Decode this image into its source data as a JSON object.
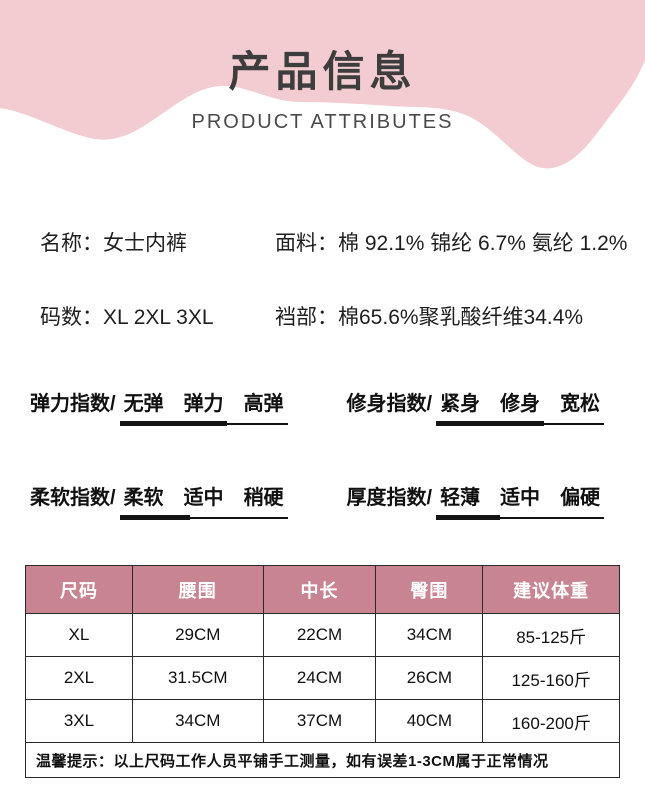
{
  "banner": {
    "title": "产品信息",
    "subtitle": "PRODUCT ATTRIBUTES",
    "bg_color": "#f2ccd1"
  },
  "info": {
    "name": "名称：女士内裤",
    "fabric": "面料：棉 92.1% 锦纶 6.7% 氨纶 1.2%",
    "sizes": "码数：XL 2XL 3XL",
    "crotch": "裆部：棉65.6%聚乳酸纤维34.4%"
  },
  "indicators": [
    {
      "label": "弹力指数/",
      "options": [
        "无弹",
        "弹力",
        "高弹"
      ],
      "fill_percent": 64
    },
    {
      "label": "修身指数/",
      "options": [
        "紧身",
        "修身",
        "宽松"
      ],
      "fill_percent": 64
    },
    {
      "label": "柔软指数/",
      "options": [
        "柔软",
        "适中",
        "稍硬"
      ],
      "fill_percent": 42
    },
    {
      "label": "厚度指数/",
      "options": [
        "轻薄",
        "适中",
        "偏硬"
      ],
      "fill_percent": 38
    }
  ],
  "table": {
    "header_bg": "#c98492",
    "headers": [
      "尺码",
      "腰围",
      "中长",
      "臀围",
      "建议体重"
    ],
    "rows": [
      [
        "XL",
        "29CM",
        "22CM",
        "34CM",
        "85-125斤"
      ],
      [
        "2XL",
        "31.5CM",
        "24CM",
        "26CM",
        "125-160斤"
      ],
      [
        "3XL",
        "34CM",
        "37CM",
        "40CM",
        "160-200斤"
      ]
    ],
    "tip": "温馨提示：以上尺码工作人员平铺手工测量，如有误差1-3CM属于正常情况"
  }
}
